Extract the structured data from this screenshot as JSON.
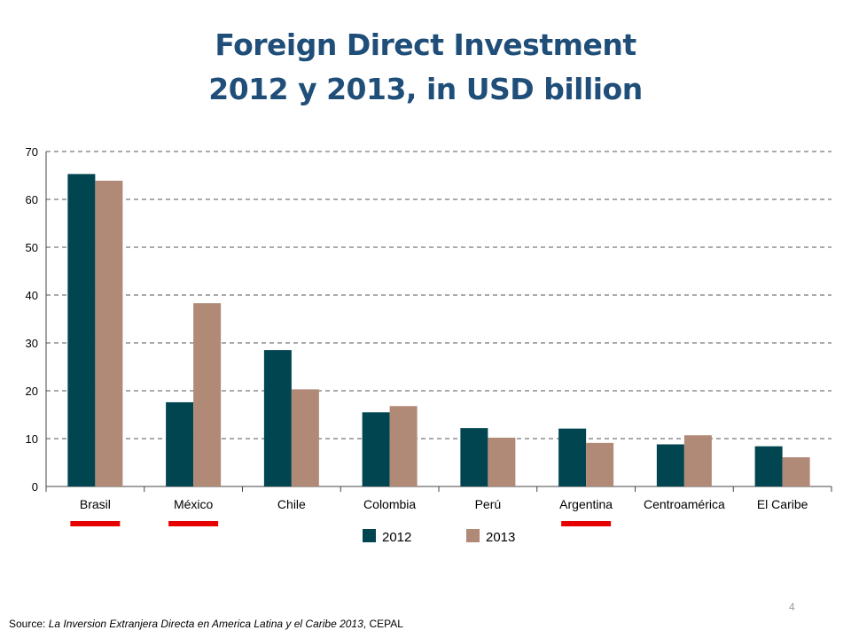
{
  "slide": {
    "title_line1": "Foreign Direct Investment",
    "title_line2": "2012 y 2013, in USD billion",
    "page_number": "4",
    "source_prefix": "Source: ",
    "source_title": "La Inversion Extranjera Directa en America Latina y el Caribe 2013",
    "source_suffix": ", CEPAL"
  },
  "highlight_color": "#e60000",
  "highlighted_categories": [
    "Brasil",
    "México",
    "Argentina"
  ],
  "chart_data": {
    "type": "bar",
    "categories": [
      "Brasil",
      "México",
      "Chile",
      "Colombia",
      "Perú",
      "Argentina",
      "Centroamérica",
      "El Caribe"
    ],
    "series": [
      {
        "name": "2012",
        "color": "#014550",
        "values": [
          65.3,
          17.6,
          28.5,
          15.5,
          12.2,
          12.1,
          8.8,
          8.4
        ]
      },
      {
        "name": "2013",
        "color": "#b08a77",
        "values": [
          63.9,
          38.3,
          20.3,
          16.8,
          10.2,
          9.1,
          10.7,
          6.1
        ]
      }
    ],
    "yticks": [
      0,
      10,
      20,
      30,
      40,
      50,
      60,
      70
    ],
    "ylim": [
      0,
      70
    ],
    "grid": true,
    "legend": "bottom-center",
    "title": "Foreign Direct Investment 2012 y 2013, in USD billion",
    "xlabel": "",
    "ylabel": ""
  }
}
